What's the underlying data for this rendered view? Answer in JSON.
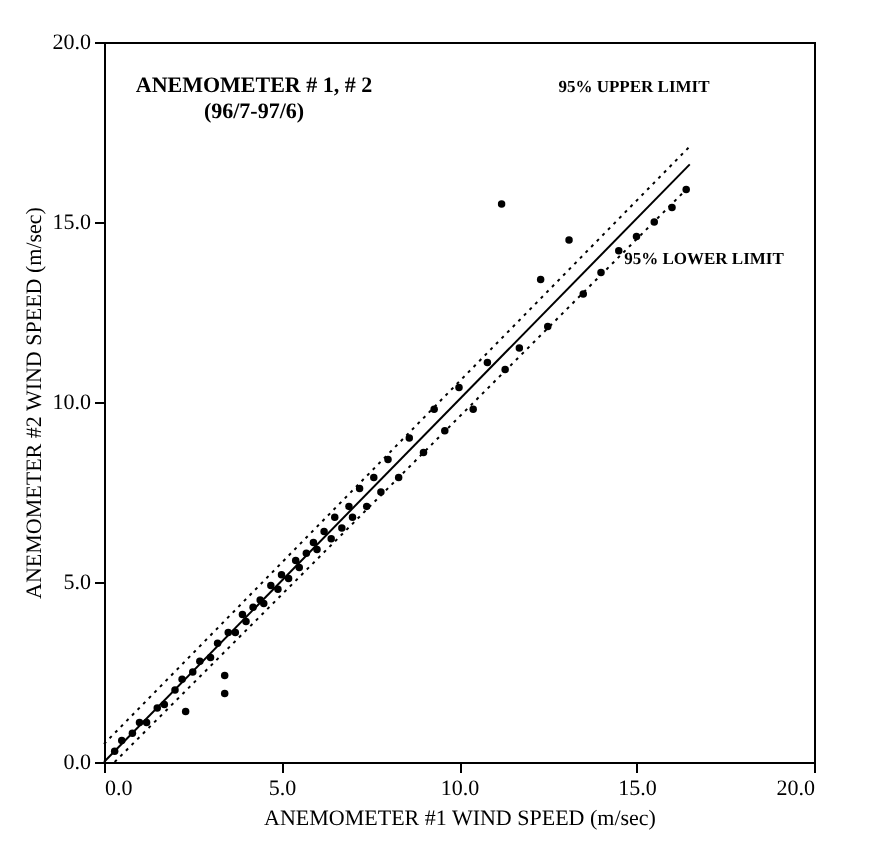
{
  "chart_data": {
    "type": "scatter",
    "xlabel": "ANEMOMETER #1 WIND SPEED (m/sec)",
    "ylabel": "ANEMOMETER #2 WIND SPEED (m/sec)",
    "xlim": [
      0,
      20
    ],
    "ylim": [
      0,
      20
    ],
    "xticks": [
      {
        "value": 0,
        "label": "0.0"
      },
      {
        "value": 5,
        "label": "5.0"
      },
      {
        "value": 10,
        "label": "10.0"
      },
      {
        "value": 15,
        "label": "15.0"
      },
      {
        "value": 20,
        "label": "20.0"
      }
    ],
    "yticks": [
      {
        "value": 0,
        "label": "0.0"
      },
      {
        "value": 5,
        "label": "5.0"
      },
      {
        "value": 10,
        "label": "10.0"
      },
      {
        "value": 15,
        "label": "15.0"
      },
      {
        "value": 20,
        "label": "20.0"
      }
    ],
    "grid": false,
    "annotations": [
      "ANEMOMETER # 1, # 2",
      "(96/7-97/6)",
      "95% UPPER LIMIT",
      "95% LOWER LIMIT"
    ],
    "series": [
      {
        "marker": "circle",
        "color": "#000000",
        "x": [
          0.3,
          0.5,
          0.8,
          1.0,
          1.2,
          1.5,
          1.7,
          2.0,
          2.2,
          2.3,
          2.5,
          2.7,
          3.0,
          3.2,
          3.4,
          3.4,
          3.5,
          3.7,
          3.9,
          4.0,
          4.2,
          4.4,
          4.5,
          4.7,
          4.9,
          5.0,
          5.2,
          5.4,
          5.5,
          5.7,
          5.9,
          6.0,
          6.2,
          6.4,
          6.5,
          6.7,
          6.9,
          7.0,
          7.2,
          7.4,
          7.6,
          7.8,
          8.0,
          8.3,
          8.6,
          9.0,
          9.3,
          9.6,
          10.0,
          10.4,
          10.8,
          11.2,
          11.3,
          11.7,
          12.3,
          12.5,
          13.1,
          13.5,
          14.0,
          14.5,
          15.0,
          15.5,
          16.0,
          16.4
        ],
        "values": [
          0.3,
          0.6,
          0.8,
          1.1,
          1.1,
          1.5,
          1.6,
          2.0,
          2.3,
          1.4,
          2.5,
          2.8,
          2.9,
          3.3,
          1.9,
          2.4,
          3.6,
          3.6,
          4.1,
          3.9,
          4.3,
          4.5,
          4.4,
          4.9,
          4.8,
          5.2,
          5.1,
          5.6,
          5.4,
          5.8,
          6.1,
          5.9,
          6.4,
          6.2,
          6.8,
          6.5,
          7.1,
          6.8,
          7.6,
          7.1,
          7.9,
          7.5,
          8.4,
          7.9,
          9.0,
          8.6,
          9.8,
          9.2,
          10.4,
          9.8,
          11.1,
          15.5,
          10.9,
          11.5,
          13.4,
          12.1,
          14.5,
          13.0,
          13.6,
          14.2,
          14.6,
          15.0,
          15.4,
          15.9
        ]
      },
      {
        "type": "line",
        "color": "#000000",
        "line_style": "solid",
        "x": [
          0,
          16.5
        ],
        "values": [
          0,
          16.6
        ]
      },
      {
        "type": "line",
        "color": "#000000",
        "line_style": "dotted",
        "x": [
          0,
          16.5
        ],
        "values": [
          0.5,
          17.1
        ]
      },
      {
        "type": "line",
        "color": "#000000",
        "line_style": "dotted",
        "x": [
          0.3,
          16.5
        ],
        "values": [
          0,
          16.0
        ]
      }
    ]
  }
}
